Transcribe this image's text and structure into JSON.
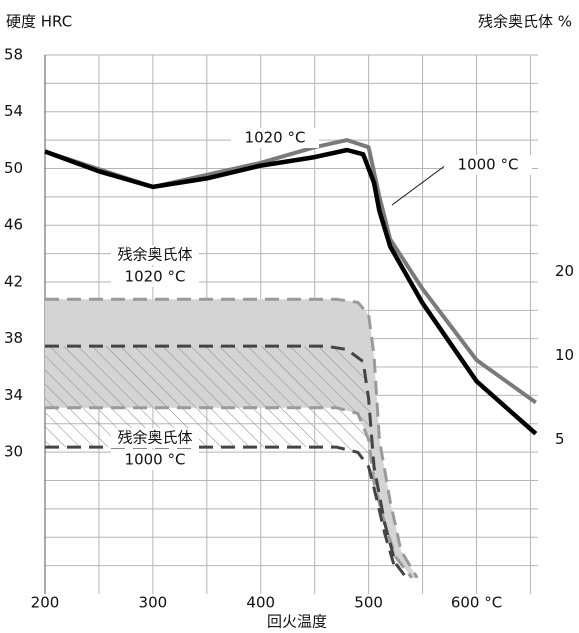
{
  "chart_data": {
    "type": "line",
    "y_label": "硬度 HRC",
    "y2_label": "残余奥氏体 %",
    "x_label": "回火温度",
    "xlim": [
      200,
      657
    ],
    "xticks": [
      200,
      300,
      400,
      500,
      {
        "value": 600,
        "label": "600 °C"
      }
    ],
    "xminorticks": [
      250,
      350,
      450,
      550,
      650
    ],
    "ylim": [
      20,
      58
    ],
    "yticks": [
      30,
      34,
      38,
      42,
      46,
      50,
      54,
      58
    ],
    "yminorticks": [
      22,
      24,
      26,
      28,
      32,
      36,
      40,
      44,
      48,
      52,
      56
    ],
    "y2lim": [
      1.4,
      119
    ],
    "y2scale": "log",
    "y2ticks": [
      5,
      10,
      20
    ],
    "grid": true,
    "series": [
      {
        "name": "1020 °C",
        "color": "#7a7a7a",
        "width": 4,
        "x": [
          200,
          300,
          400,
          450,
          480,
          500,
          510,
          520,
          550,
          600,
          655
        ],
        "values": [
          51.2,
          48.7,
          50.4,
          51.5,
          52,
          51.5,
          48,
          45,
          41.5,
          36.5,
          33.5
        ]
      },
      {
        "name": "1000 °C",
        "color": "#000000",
        "width": 4.5,
        "x": [
          200,
          250,
          300,
          350,
          400,
          450,
          480,
          495,
          505,
          510,
          520,
          550,
          600,
          655
        ],
        "values": [
          51.2,
          49.8,
          48.7,
          49.3,
          50.2,
          50.8,
          51.3,
          51,
          49,
          47,
          44.5,
          40.5,
          35,
          31.3
        ]
      },
      {
        "color": "#9a9a9a",
        "axis": "y2",
        "dashed": true,
        "fill": "#d4d4d4",
        "x": [
          200,
          470,
          490,
          500,
          505,
          510,
          520,
          530,
          545
        ],
        "values": [
          15.9,
          15.9,
          15.5,
          14,
          10,
          5,
          3,
          2,
          1.6
        ]
      },
      {
        "color": "#9a9a9a",
        "axis": "y2",
        "dashed": true,
        "x": [
          200,
          470,
          490,
          500,
          505,
          515,
          525,
          540
        ],
        "values": [
          6.5,
          6.5,
          6.2,
          5,
          3.5,
          2.5,
          1.9,
          1.6
        ]
      },
      {
        "color": "#444444",
        "axis": "y2",
        "dashed": true,
        "hatch": true,
        "x": [
          200,
          460,
          480,
          495,
          500,
          505,
          515,
          525,
          535
        ],
        "values": [
          10.8,
          10.8,
          10.5,
          9.5,
          7,
          4,
          2.5,
          1.8,
          1.6
        ]
      },
      {
        "color": "#444444",
        "axis": "y2",
        "dashed": true,
        "x": [
          200,
          470,
          490,
          500,
          508,
          515,
          525
        ],
        "values": [
          4.7,
          4.7,
          4.5,
          4,
          3,
          2.3,
          1.7
        ]
      }
    ],
    "annotations": [
      {
        "lines": [
          "1020 °C"
        ],
        "x": 275,
        "y": 138
      },
      {
        "lines": [
          "1000 °C"
        ],
        "x": 488,
        "y": 165
      },
      {
        "lines": [
          "残余奥氏体",
          "1020 °C"
        ],
        "x": 155,
        "y": 255
      },
      {
        "lines": [
          "残余奥氏体",
          "1000 °C"
        ],
        "x": 155,
        "y": 438
      }
    ]
  }
}
